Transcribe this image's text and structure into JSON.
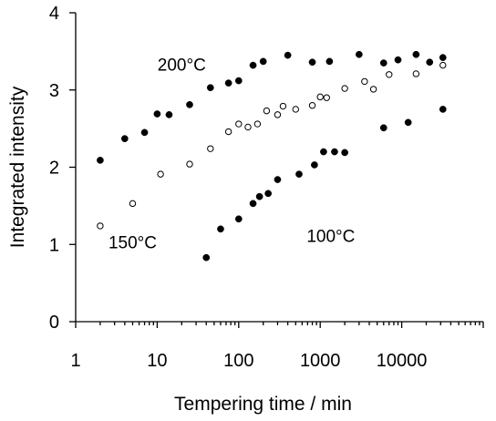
{
  "chart_data": {
    "type": "scatter",
    "title": "",
    "xlabel": "Tempering time / min",
    "ylabel": "Integrated intensity",
    "xscale": "log",
    "xlim": [
      1,
      100000
    ],
    "ylim": [
      0,
      4
    ],
    "xticks": [
      1,
      10,
      100,
      1000,
      10000
    ],
    "xtick_labels": [
      "1",
      "10",
      "100",
      "1000",
      "10000"
    ],
    "yticks": [
      0,
      1,
      2,
      3,
      4
    ],
    "ytick_labels": [
      "0",
      "1",
      "2",
      "3",
      "4"
    ],
    "grid": false,
    "series": [
      {
        "name": "200°C",
        "marker": "filled-circle",
        "color": "#000000",
        "points": [
          [
            2,
            2.09
          ],
          [
            4,
            2.37
          ],
          [
            7,
            2.45
          ],
          [
            10,
            2.69
          ],
          [
            14,
            2.68
          ],
          [
            25,
            2.81
          ],
          [
            45,
            3.03
          ],
          [
            75,
            3.09
          ],
          [
            100,
            3.12
          ],
          [
            150,
            3.32
          ],
          [
            200,
            3.37
          ],
          [
            400,
            3.45
          ],
          [
            800,
            3.36
          ],
          [
            1300,
            3.37
          ],
          [
            3000,
            3.46
          ],
          [
            6000,
            3.35
          ],
          [
            9000,
            3.39
          ],
          [
            15000,
            3.46
          ],
          [
            22000,
            3.36
          ],
          [
            32000,
            3.42
          ]
        ]
      },
      {
        "name": "150°C",
        "marker": "open-circle",
        "color": "#000000",
        "points": [
          [
            2,
            1.24
          ],
          [
            5,
            1.53
          ],
          [
            11,
            1.91
          ],
          [
            25,
            2.04
          ],
          [
            45,
            2.24
          ],
          [
            75,
            2.46
          ],
          [
            100,
            2.56
          ],
          [
            130,
            2.52
          ],
          [
            170,
            2.56
          ],
          [
            220,
            2.73
          ],
          [
            300,
            2.68
          ],
          [
            350,
            2.79
          ],
          [
            500,
            2.75
          ],
          [
            800,
            2.8
          ],
          [
            1000,
            2.91
          ],
          [
            1200,
            2.9
          ],
          [
            2000,
            3.02
          ],
          [
            3500,
            3.11
          ],
          [
            4500,
            3.01
          ],
          [
            7000,
            3.2
          ],
          [
            15000,
            3.21
          ],
          [
            32000,
            3.32
          ]
        ]
      },
      {
        "name": "100°C",
        "marker": "filled-circle",
        "color": "#000000",
        "points": [
          [
            40,
            0.83
          ],
          [
            60,
            1.2
          ],
          [
            100,
            1.33
          ],
          [
            150,
            1.53
          ],
          [
            180,
            1.62
          ],
          [
            230,
            1.66
          ],
          [
            300,
            1.84
          ],
          [
            550,
            1.91
          ],
          [
            850,
            2.03
          ],
          [
            1100,
            2.2
          ],
          [
            1500,
            2.2
          ],
          [
            2000,
            2.19
          ],
          [
            6000,
            2.51
          ],
          [
            12000,
            2.58
          ],
          [
            32000,
            2.75
          ]
        ]
      }
    ],
    "annotations": [
      {
        "text": "200°C",
        "x": 20,
        "y": 3.25
      },
      {
        "text": "150°C",
        "x": 5,
        "y": 0.95
      },
      {
        "text": "100°C",
        "x": 1350,
        "y": 1.03
      }
    ]
  }
}
